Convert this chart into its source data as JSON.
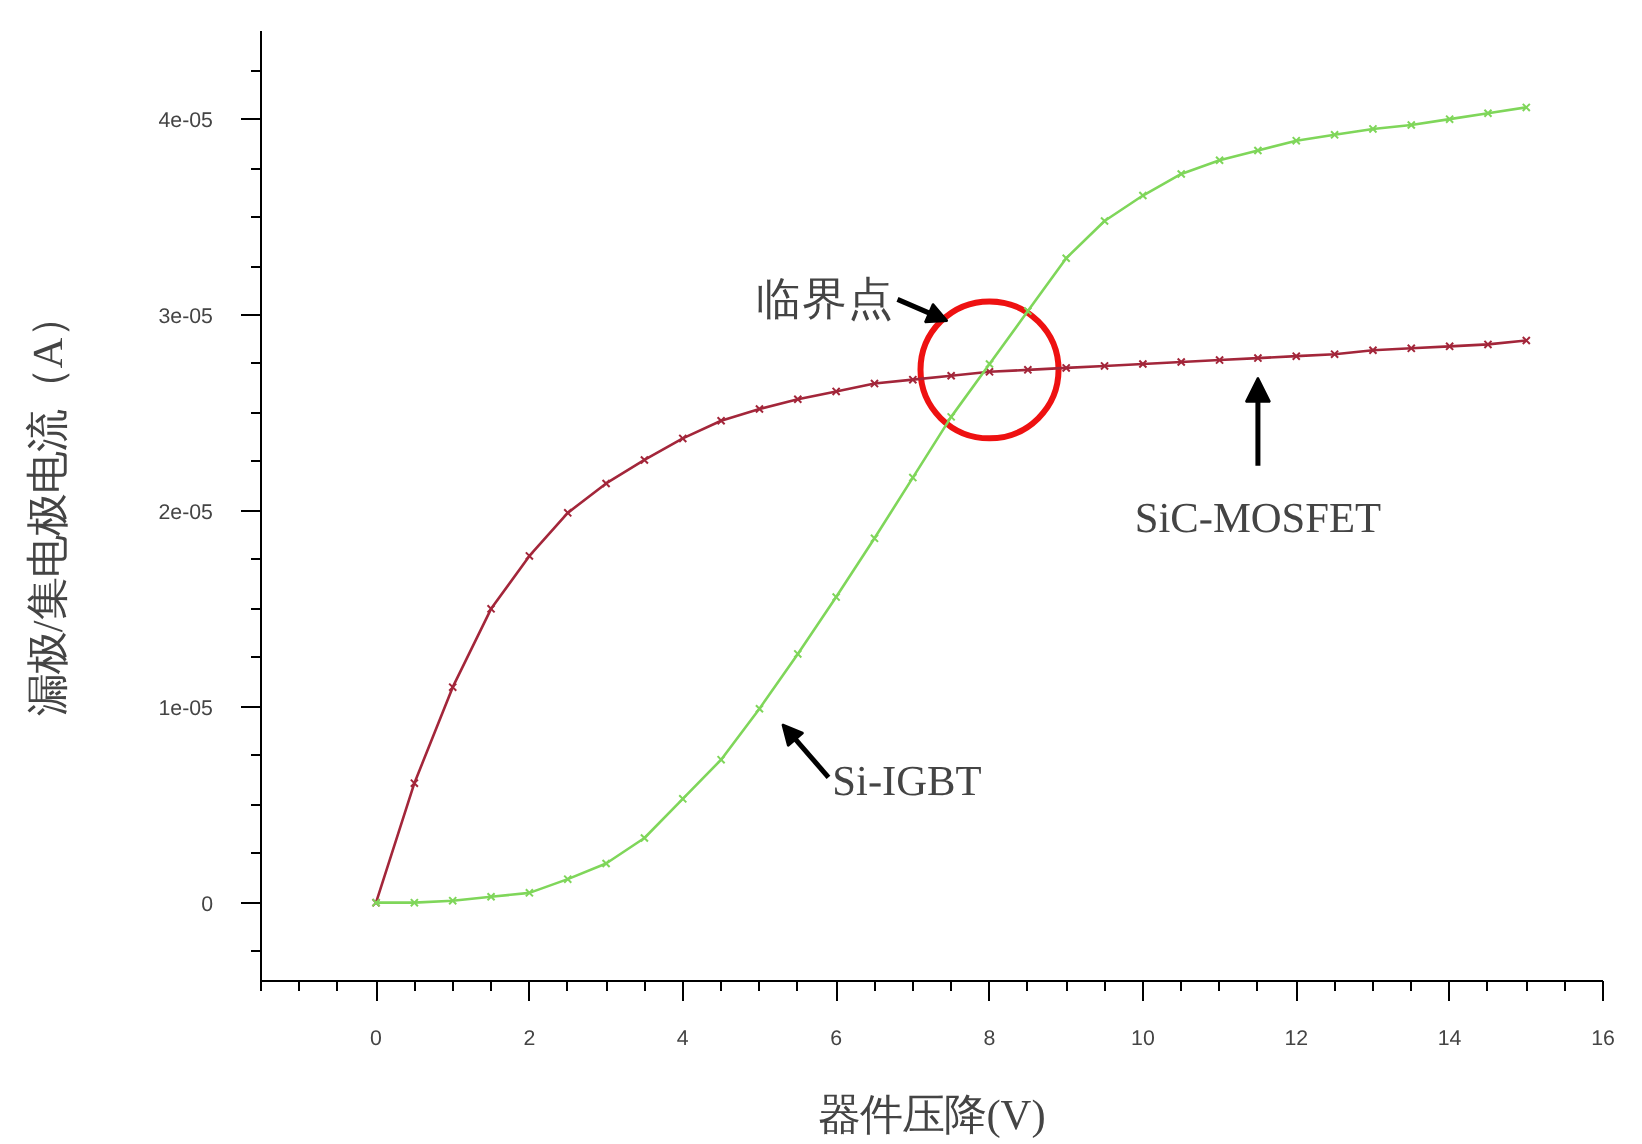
{
  "chart_data": {
    "type": "line",
    "xlabel": "器件压降(V)",
    "ylabel": "漏极/集电极电流（A）",
    "x": [
      0,
      0.5,
      1,
      1.5,
      2,
      2.5,
      3,
      3.5,
      4,
      4.5,
      5,
      5.5,
      6,
      6.5,
      7,
      7.5,
      8,
      8.5,
      9,
      9.5,
      10,
      10.5,
      11,
      11.5,
      12,
      12.5,
      13,
      13.5,
      14,
      14.5,
      15
    ],
    "series": [
      {
        "name": "SiC-MOSFET",
        "color": "#a3263a",
        "values": [
          0,
          6.1e-06,
          1.1e-05,
          1.5e-05,
          1.77e-05,
          1.99e-05,
          2.14e-05,
          2.26e-05,
          2.37e-05,
          2.46e-05,
          2.52e-05,
          2.57e-05,
          2.61e-05,
          2.65e-05,
          2.67e-05,
          2.69e-05,
          2.71e-05,
          2.72e-05,
          2.73e-05,
          2.74e-05,
          2.75e-05,
          2.76e-05,
          2.77e-05,
          2.78e-05,
          2.79e-05,
          2.8e-05,
          2.82e-05,
          2.83e-05,
          2.84e-05,
          2.85e-05,
          2.87e-05
        ]
      },
      {
        "name": "Si-IGBT",
        "color": "#7fd65a",
        "values": [
          0,
          0,
          1e-07,
          3e-07,
          5e-07,
          1.2e-06,
          2e-06,
          3.3e-06,
          5.3e-06,
          7.3e-06,
          9.9e-06,
          1.27e-05,
          1.56e-05,
          1.86e-05,
          2.17e-05,
          2.48e-05,
          2.75e-05,
          3.02e-05,
          3.29e-05,
          3.48e-05,
          3.61e-05,
          3.72e-05,
          3.79e-05,
          3.84e-05,
          3.89e-05,
          3.92e-05,
          3.95e-05,
          3.97e-05,
          4e-05,
          4.03e-05,
          4.06e-05
        ]
      }
    ],
    "annotations": [
      {
        "text": "临界点",
        "x": 8,
        "y": 2.72e-05
      }
    ],
    "xlim": [
      -1.5,
      16
    ],
    "ylim": [
      -4e-06,
      4.45e-05
    ],
    "xticks": [
      0,
      2,
      4,
      6,
      8,
      10,
      12,
      14,
      16,
      {
        "value": -1.5,
        "label": null
      },
      {
        "value": -1,
        "label": null
      },
      {
        "value": -0.5,
        "label": null
      },
      {
        "value": 0.5,
        "label": null
      },
      {
        "value": 1,
        "label": null
      },
      {
        "value": 1.5,
        "label": null
      },
      {
        "value": 2.5,
        "label": null
      },
      {
        "value": 3,
        "label": null
      },
      {
        "value": 3.5,
        "label": null
      },
      {
        "value": 4.5,
        "label": null
      },
      {
        "value": 5,
        "label": null
      },
      {
        "value": 5.5,
        "label": null
      },
      {
        "value": 6.5,
        "label": null
      },
      {
        "value": 7,
        "label": null
      },
      {
        "value": 7.5,
        "label": null
      },
      {
        "value": 8.5,
        "label": null
      },
      {
        "value": 9,
        "label": null
      },
      {
        "value": 9.5,
        "label": null
      },
      {
        "value": 10.5,
        "label": null
      },
      {
        "value": 11,
        "label": null
      },
      {
        "value": 11.5,
        "label": null
      },
      {
        "value": 12.5,
        "label": null
      },
      {
        "value": 13,
        "label": null
      },
      {
        "value": 13.5,
        "label": null
      },
      {
        "value": 14.5,
        "label": null
      },
      {
        "value": 15,
        "label": null
      },
      {
        "value": 15.5,
        "label": null
      }
    ],
    "yticks": [
      0,
      {
        "value": 1e-05,
        "label": "1e-05"
      },
      {
        "value": 2e-05,
        "label": "2e-05"
      },
      {
        "value": 3e-05,
        "label": "3e-05"
      },
      {
        "value": 4e-05,
        "label": "4e-05"
      },
      {
        "value": -2.5e-06,
        "label": null
      },
      {
        "value": 2.5e-06,
        "label": null
      },
      {
        "value": 5e-06,
        "label": null
      },
      {
        "value": 7.5e-06,
        "label": null
      },
      {
        "value": 1.25e-05,
        "label": null
      },
      {
        "value": 1.5e-05,
        "label": null
      },
      {
        "value": 1.75e-05,
        "label": null
      },
      {
        "value": 2.25e-05,
        "label": null
      },
      {
        "value": 2.5e-05,
        "label": null
      },
      {
        "value": 2.75e-05,
        "label": null
      },
      {
        "value": 3.25e-05,
        "label": null
      },
      {
        "value": 3.5e-05,
        "label": null
      },
      {
        "value": 3.75e-05,
        "label": null
      },
      {
        "value": 4.25e-05,
        "label": null
      }
    ],
    "marker": "cross",
    "grid": false
  }
}
